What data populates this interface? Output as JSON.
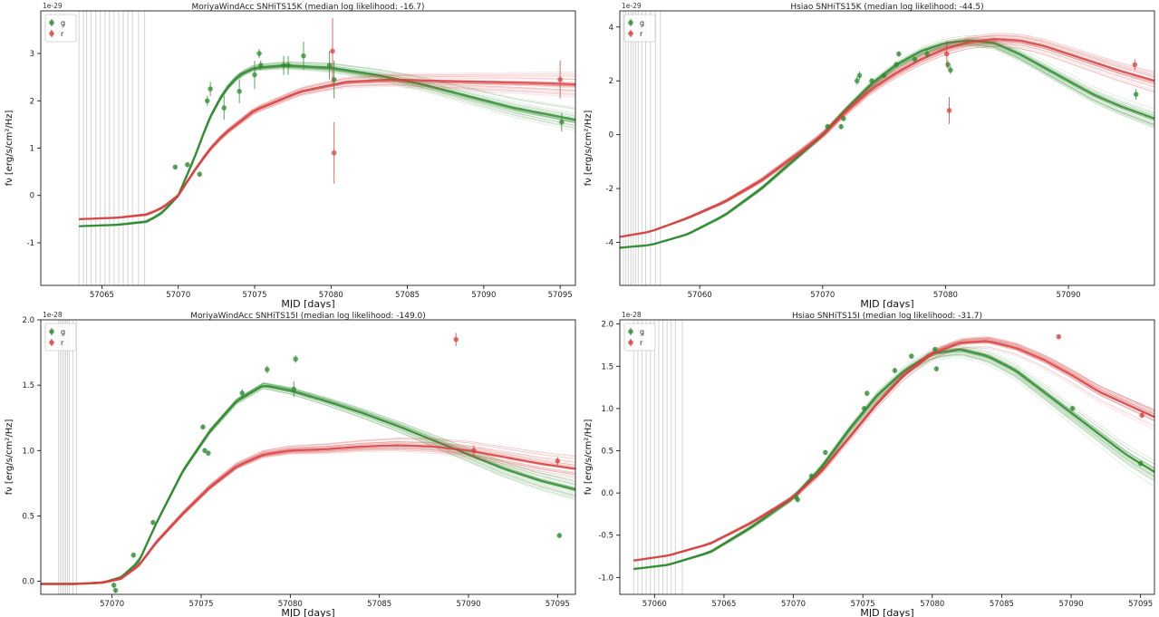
{
  "chart_data": [
    {
      "type": "line",
      "title": "MoriyaWindAcc SNHiTS15K (median log likelihood: -16.7)",
      "xlabel": "MJD [days]",
      "ylabel": "fν [erg/s/cm²/Hz]",
      "scale_label": "1e-29",
      "xlim": [
        57061,
        57096
      ],
      "ylim": [
        -1.9,
        3.9
      ],
      "xticks": [
        57065,
        57070,
        57075,
        57080,
        57085,
        57090,
        57095
      ],
      "yticks": [
        -1,
        0,
        1,
        2,
        3
      ],
      "legend": {
        "position": "top-left",
        "entries": [
          "g",
          "r"
        ]
      },
      "grid": false,
      "vlines": [
        57063.5,
        57063.8,
        57064.0,
        57064.3,
        57064.6,
        57064.9,
        57065.2,
        57065.5,
        57065.8,
        57066.1,
        57066.4,
        57066.7,
        57067.0,
        57067.4,
        57067.8
      ],
      "series": [
        {
          "name": "g",
          "color": "#2e8b2e",
          "model_x": [
            57063.5,
            57066,
            57068,
            57069,
            57070,
            57071,
            57072,
            57073,
            57074,
            57075,
            57077,
            57080,
            57083,
            57086,
            57089,
            57092,
            57096
          ],
          "model_y": [
            -0.65,
            -0.62,
            -0.55,
            -0.35,
            0.0,
            0.75,
            1.6,
            2.2,
            2.55,
            2.7,
            2.75,
            2.7,
            2.55,
            2.35,
            2.1,
            1.85,
            1.6
          ],
          "points": [
            {
              "x": 57069.8,
              "y": 0.6,
              "err": 0.05
            },
            {
              "x": 57070.6,
              "y": 0.65,
              "err": 0.05
            },
            {
              "x": 57071.4,
              "y": 0.45,
              "err": 0.05
            },
            {
              "x": 57071.9,
              "y": 2.0,
              "err": 0.1
            },
            {
              "x": 57072.1,
              "y": 2.25,
              "err": 0.15
            },
            {
              "x": 57073.0,
              "y": 1.85,
              "err": 0.25
            },
            {
              "x": 57074.0,
              "y": 2.2,
              "err": 0.25
            },
            {
              "x": 57075.0,
              "y": 2.55,
              "err": 0.3
            },
            {
              "x": 57075.3,
              "y": 3.0,
              "err": 0.1
            },
            {
              "x": 57075.4,
              "y": 2.75,
              "err": 0.1
            },
            {
              "x": 57076.9,
              "y": 2.75,
              "err": 0.2
            },
            {
              "x": 57077.2,
              "y": 2.75,
              "err": 0.2
            },
            {
              "x": 57078.2,
              "y": 2.95,
              "err": 0.3
            },
            {
              "x": 57079.9,
              "y": 2.75,
              "err": 0.3
            },
            {
              "x": 57080.2,
              "y": 2.45,
              "err": 0.4
            },
            {
              "x": 57095.1,
              "y": 1.55,
              "err": 0.2
            }
          ]
        },
        {
          "name": "r",
          "color": "#d94040",
          "model_x": [
            57063.5,
            57066,
            57068,
            57069,
            57070,
            57071,
            57072,
            57073,
            57075,
            57078,
            57081,
            57084,
            57087,
            57090,
            57093,
            57096
          ],
          "model_y": [
            -0.5,
            -0.47,
            -0.4,
            -0.25,
            0.0,
            0.5,
            0.95,
            1.3,
            1.8,
            2.2,
            2.4,
            2.45,
            2.42,
            2.4,
            2.38,
            2.35
          ],
          "points": [
            {
              "x": 57080.1,
              "y": 3.05,
              "err": 0.7
            },
            {
              "x": 57080.2,
              "y": 0.9,
              "err": 0.65
            },
            {
              "x": 57095.0,
              "y": 2.45,
              "err": 0.4
            }
          ]
        }
      ]
    },
    {
      "type": "line",
      "title": "Hsiao SNHiTS15K (median log likelihood: -44.5)",
      "xlabel": "MJD [days]",
      "ylabel": "fν [erg/s/cm²/Hz]",
      "scale_label": "1e-29",
      "xlim": [
        57053.5,
        57097
      ],
      "ylim": [
        -5.6,
        4.6
      ],
      "xticks": [
        57060,
        57070,
        57080,
        57090
      ],
      "ytick_labels": [
        "-4",
        "-2",
        "0",
        "2",
        "4"
      ],
      "yticks": [
        -4,
        -2,
        0,
        2,
        4
      ],
      "legend": {
        "position": "top-left",
        "entries": [
          "g",
          "r"
        ]
      },
      "grid": false,
      "vlines": [
        57053.8,
        57054.0,
        57054.2,
        57054.4,
        57054.6,
        57054.8,
        57055.0,
        57055.3,
        57055.6,
        57056.0,
        57056.4,
        57056.8
      ],
      "series": [
        {
          "name": "g",
          "color": "#2e8b2e",
          "model_x": [
            57053.5,
            57056,
            57059,
            57062,
            57065,
            57068,
            57070,
            57072,
            57074,
            57076,
            57078,
            57080,
            57082,
            57084,
            57086,
            57088,
            57090,
            57092,
            57094,
            57097
          ],
          "model_y": [
            -4.2,
            -4.1,
            -3.7,
            -3.0,
            -2.0,
            -0.8,
            0.0,
            1.0,
            1.9,
            2.6,
            3.1,
            3.4,
            3.5,
            3.4,
            3.0,
            2.5,
            2.0,
            1.5,
            1.1,
            0.6
          ],
          "points": [
            {
              "x": 57070.4,
              "y": 0.3,
              "err": 0.1
            },
            {
              "x": 57071.5,
              "y": 0.3,
              "err": 0.1
            },
            {
              "x": 57071.7,
              "y": 0.6,
              "err": 0.1
            },
            {
              "x": 57072.8,
              "y": 2.0,
              "err": 0.15
            },
            {
              "x": 57073.0,
              "y": 2.2,
              "err": 0.15
            },
            {
              "x": 57074.0,
              "y": 2.0,
              "err": 0.1
            },
            {
              "x": 57075.0,
              "y": 2.2,
              "err": 0.1
            },
            {
              "x": 57076.0,
              "y": 2.6,
              "err": 0.1
            },
            {
              "x": 57076.2,
              "y": 3.0,
              "err": 0.1
            },
            {
              "x": 57077.5,
              "y": 2.8,
              "err": 0.1
            },
            {
              "x": 57078.5,
              "y": 3.0,
              "err": 0.15
            },
            {
              "x": 57080.2,
              "y": 2.6,
              "err": 0.15
            },
            {
              "x": 57080.4,
              "y": 2.4,
              "err": 0.15
            },
            {
              "x": 57095.5,
              "y": 1.5,
              "err": 0.2
            }
          ]
        },
        {
          "name": "r",
          "color": "#d94040",
          "model_x": [
            57053.5,
            57056,
            57059,
            57062,
            57065,
            57068,
            57070,
            57072,
            57074,
            57076,
            57078,
            57080,
            57082,
            57084,
            57086,
            57088,
            57090,
            57092,
            57094,
            57097
          ],
          "model_y": [
            -3.8,
            -3.6,
            -3.1,
            -2.5,
            -1.7,
            -0.7,
            0.0,
            0.9,
            1.7,
            2.3,
            2.8,
            3.2,
            3.45,
            3.55,
            3.5,
            3.3,
            3.0,
            2.7,
            2.4,
            2.0
          ],
          "points": [
            {
              "x": 57080.1,
              "y": 3.0,
              "err": 0.5
            },
            {
              "x": 57080.3,
              "y": 0.9,
              "err": 0.5
            },
            {
              "x": 57095.4,
              "y": 2.6,
              "err": 0.2
            }
          ]
        }
      ]
    },
    {
      "type": "line",
      "title": "MoriyaWindAcc SNHiTS15I (median log likelihood: -149.0)",
      "xlabel": "MJD [days]",
      "ylabel": "fν [erg/s/cm²/Hz]",
      "scale_label": "1e-28",
      "xlim": [
        57066,
        57096
      ],
      "ylim": [
        -0.1,
        2.0
      ],
      "xticks": [
        57070,
        57075,
        57080,
        57085,
        57090,
        57095
      ],
      "yticks": [
        0.0,
        0.5,
        1.0,
        1.5,
        2.0
      ],
      "legend": {
        "position": "top-left",
        "entries": [
          "g",
          "r"
        ]
      },
      "grid": false,
      "vlines": [
        57067.0,
        57067.1,
        57067.2,
        57067.3,
        57067.4,
        57067.5,
        57067.6,
        57067.8,
        57068.0
      ],
      "series": [
        {
          "name": "g",
          "color": "#2e8b2e",
          "model_x": [
            57066,
            57068,
            57069.5,
            57070.5,
            57071.5,
            57072.5,
            57074,
            57075.5,
            57077,
            57078.5,
            57080,
            57082,
            57084,
            57086,
            57088,
            57090,
            57092,
            57094,
            57096
          ],
          "model_y": [
            -0.02,
            -0.02,
            -0.01,
            0.03,
            0.15,
            0.45,
            0.85,
            1.15,
            1.38,
            1.5,
            1.46,
            1.38,
            1.29,
            1.19,
            1.08,
            0.97,
            0.86,
            0.77,
            0.7
          ],
          "points": [
            {
              "x": 57070.1,
              "y": -0.03,
              "err": 0.02
            },
            {
              "x": 57070.2,
              "y": -0.07,
              "err": 0.02
            },
            {
              "x": 57071.2,
              "y": 0.2,
              "err": 0.02
            },
            {
              "x": 57072.3,
              "y": 0.45,
              "err": 0.02
            },
            {
              "x": 57075.1,
              "y": 1.18,
              "err": 0.02
            },
            {
              "x": 57075.2,
              "y": 1.0,
              "err": 0.02
            },
            {
              "x": 57075.4,
              "y": 0.98,
              "err": 0.02
            },
            {
              "x": 57077.3,
              "y": 1.44,
              "err": 0.03
            },
            {
              "x": 57078.7,
              "y": 1.62,
              "err": 0.03
            },
            {
              "x": 57080.2,
              "y": 1.47,
              "err": 0.06
            },
            {
              "x": 57080.3,
              "y": 1.7,
              "err": 0.03
            },
            {
              "x": 57095.1,
              "y": 0.35,
              "err": 0.02
            }
          ]
        },
        {
          "name": "r",
          "color": "#d94040",
          "model_x": [
            57066,
            57068,
            57069.5,
            57070.5,
            57071.5,
            57072.5,
            57074,
            57075.5,
            57077,
            57078.5,
            57080,
            57082,
            57084,
            57086,
            57088,
            57090,
            57092,
            57094,
            57096
          ],
          "model_y": [
            -0.02,
            -0.02,
            -0.01,
            0.02,
            0.12,
            0.3,
            0.52,
            0.72,
            0.88,
            0.97,
            1.0,
            1.01,
            1.03,
            1.04,
            1.03,
            1.0,
            0.95,
            0.9,
            0.86
          ],
          "points": [
            {
              "x": 57089.3,
              "y": 1.85,
              "err": 0.05
            },
            {
              "x": 57090.3,
              "y": 1.0,
              "err": 0.04
            },
            {
              "x": 57095.0,
              "y": 0.92,
              "err": 0.03
            }
          ]
        }
      ]
    },
    {
      "type": "line",
      "title": "Hsiao SNHiTS15I (median log likelihood: -31.7)",
      "xlabel": "MJD [days]",
      "ylabel": "fν [erg/s/cm²/Hz]",
      "scale_label": "1e-28",
      "xlim": [
        57057.5,
        57096
      ],
      "ylim": [
        -1.2,
        2.05
      ],
      "xticks": [
        57060,
        57065,
        57070,
        57075,
        57080,
        57085,
        57090,
        57095
      ],
      "yticks": [
        -1.0,
        -0.5,
        0.0,
        0.5,
        1.0,
        1.5,
        2.0
      ],
      "legend": {
        "position": "top-left",
        "entries": [
          "g",
          "r"
        ]
      },
      "grid": false,
      "vlines": [
        57058.5,
        57058.8,
        57059.1,
        57059.4,
        57059.7,
        57060.0,
        57060.3,
        57060.6,
        57060.9,
        57061.2,
        57061.5,
        57062.0
      ],
      "series": [
        {
          "name": "g",
          "color": "#2e8b2e",
          "model_x": [
            57058.5,
            57061,
            57064,
            57067,
            57070,
            57072,
            57074,
            57076,
            57078,
            57080,
            57082,
            57084,
            57086,
            57088,
            57090,
            57092,
            57094,
            57096
          ],
          "model_y": [
            -0.9,
            -0.85,
            -0.7,
            -0.4,
            -0.05,
            0.3,
            0.75,
            1.15,
            1.45,
            1.65,
            1.7,
            1.62,
            1.45,
            1.2,
            0.95,
            0.7,
            0.45,
            0.25
          ],
          "points": [
            {
              "x": 57070.2,
              "y": -0.05,
              "err": 0.03
            },
            {
              "x": 57070.3,
              "y": -0.08,
              "err": 0.03
            },
            {
              "x": 57071.3,
              "y": 0.2,
              "err": 0.03
            },
            {
              "x": 57072.3,
              "y": 0.48,
              "err": 0.03
            },
            {
              "x": 57075.1,
              "y": 1.0,
              "err": 0.03
            },
            {
              "x": 57075.3,
              "y": 1.18,
              "err": 0.03
            },
            {
              "x": 57077.3,
              "y": 1.45,
              "err": 0.03
            },
            {
              "x": 57078.5,
              "y": 1.62,
              "err": 0.03
            },
            {
              "x": 57080.2,
              "y": 1.7,
              "err": 0.03
            },
            {
              "x": 57080.3,
              "y": 1.47,
              "err": 0.03
            },
            {
              "x": 57090.1,
              "y": 1.0,
              "err": 0.03
            },
            {
              "x": 57095.0,
              "y": 0.35,
              "err": 0.03
            }
          ]
        },
        {
          "name": "r",
          "color": "#d94040",
          "model_x": [
            57058.5,
            57061,
            57064,
            57067,
            57070,
            57072,
            57074,
            57076,
            57078,
            57080,
            57082,
            57084,
            57086,
            57088,
            57090,
            57092,
            57094,
            57096
          ],
          "model_y": [
            -0.8,
            -0.74,
            -0.6,
            -0.35,
            -0.05,
            0.25,
            0.65,
            1.05,
            1.4,
            1.65,
            1.78,
            1.8,
            1.72,
            1.58,
            1.4,
            1.2,
            1.05,
            0.9
          ],
          "points": [
            {
              "x": 57089.1,
              "y": 1.85,
              "err": 0.03
            },
            {
              "x": 57095.1,
              "y": 0.92,
              "err": 0.03
            }
          ]
        }
      ]
    }
  ]
}
